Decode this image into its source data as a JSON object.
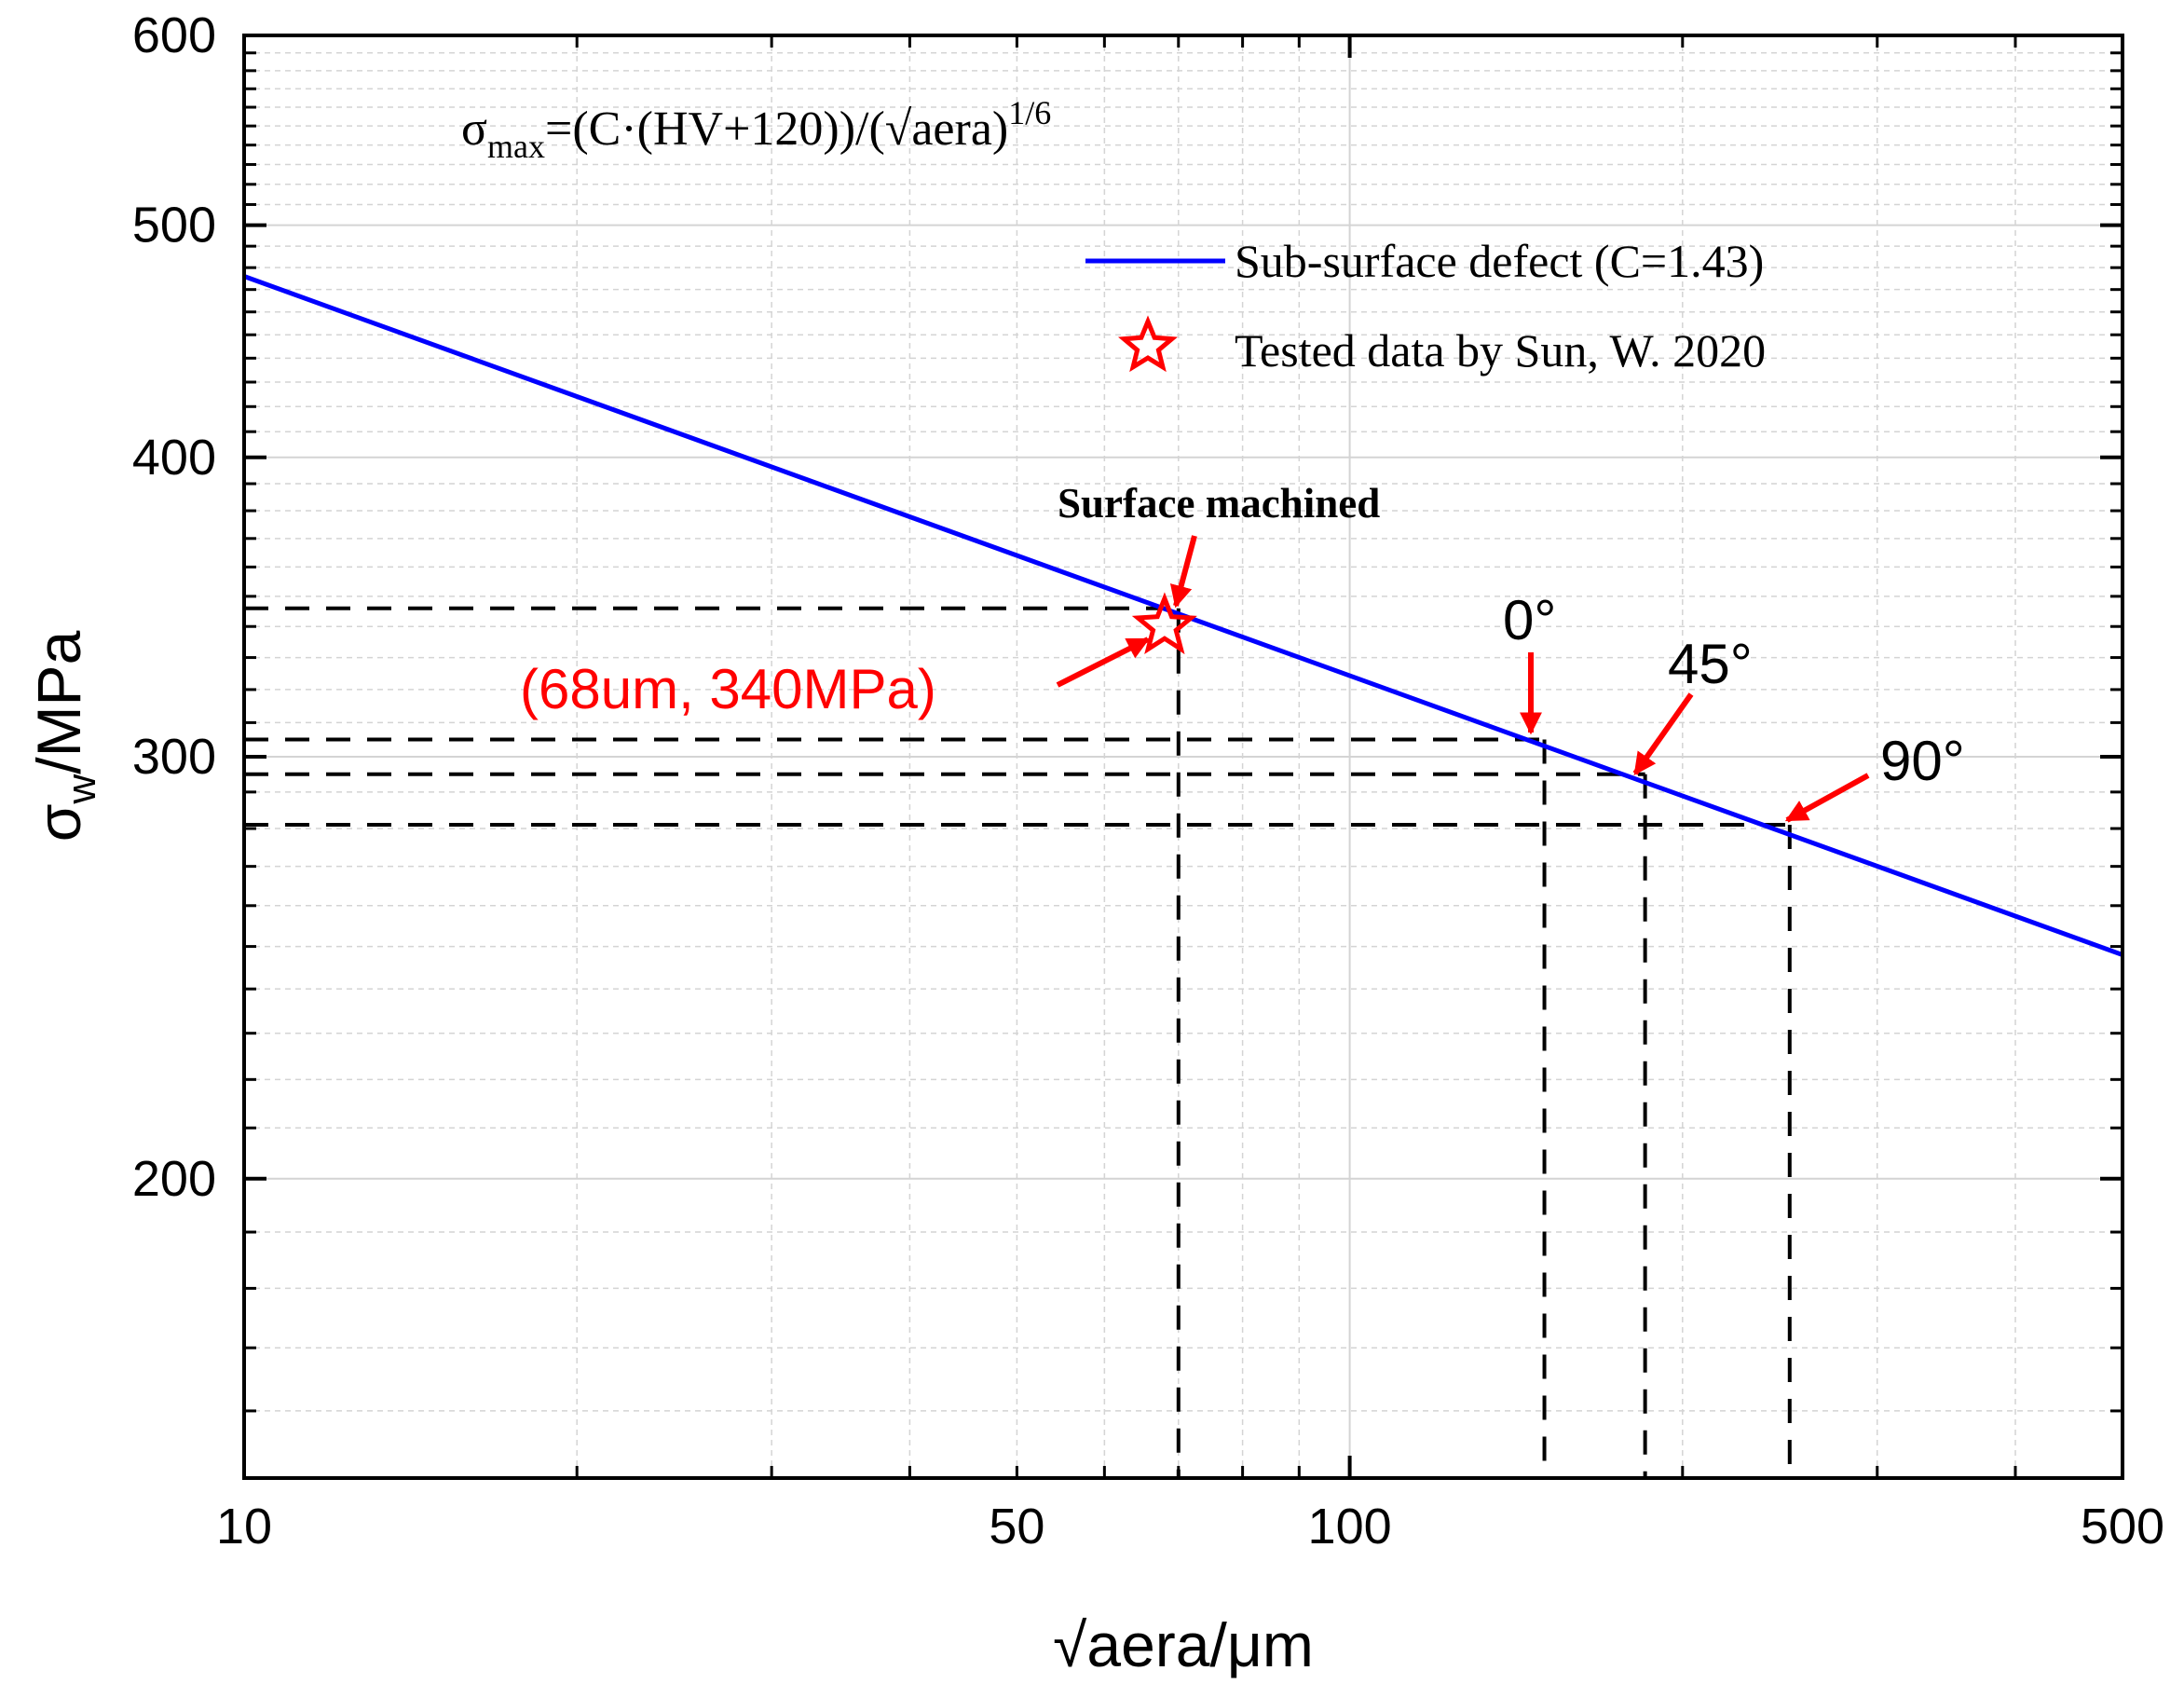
{
  "chart_data": {
    "type": "line",
    "x_scale": "log",
    "y_scale": "log",
    "xlim": [
      10,
      500
    ],
    "ylim": [
      150,
      600
    ],
    "xlabel": "√aera/μm",
    "ylabel_main": "σ",
    "ylabel_sub": "w",
    "ylabel_rest": "/MPa",
    "x_major_ticks": [
      10,
      100,
      500
    ],
    "x_minor_ticks": [
      20,
      30,
      40,
      50,
      60,
      70,
      80,
      90,
      200,
      300,
      400
    ],
    "x_tick_labels": [
      {
        "value": 10,
        "label": "10"
      },
      {
        "value": 50,
        "label": "50"
      },
      {
        "value": 100,
        "label": "100"
      },
      {
        "value": 500,
        "label": "500"
      }
    ],
    "y_major_ticks": [
      200,
      300,
      400,
      500,
      600
    ],
    "y_minor_ticks": [
      160,
      170,
      180,
      190,
      210,
      220,
      230,
      240,
      250,
      260,
      270,
      280,
      290,
      310,
      320,
      330,
      340,
      350,
      360,
      370,
      380,
      390,
      410,
      420,
      430,
      440,
      450,
      460,
      470,
      480,
      490,
      510,
      520,
      530,
      540,
      550,
      560,
      570,
      580,
      590
    ],
    "y_tick_labels": [
      {
        "value": 200,
        "label": "200"
      },
      {
        "value": 300,
        "label": "300"
      },
      {
        "value": 400,
        "label": "400"
      },
      {
        "value": 500,
        "label": "500"
      },
      {
        "value": 600,
        "label": "600"
      }
    ],
    "grid": true,
    "formula": {
      "prefix": "σ",
      "sub": "max",
      "mid": "=(C·(HV+120))/(√aera)",
      "sup": "1/6"
    },
    "series": [
      {
        "name": "Sub-surface defect (C=1.43)",
        "color": "#0000ff",
        "points": [
          [
            10,
            476
          ],
          [
            500,
            248
          ]
        ]
      },
      {
        "name": "Tested data by Sun, W. 2020",
        "color": "#ff0000",
        "marker": "star-open",
        "points": [
          [
            68,
            340
          ]
        ]
      }
    ],
    "reference_points": [
      {
        "name": "surface-machined",
        "x": 70,
        "y": 346,
        "label": "Surface machined",
        "label_style": "bold"
      },
      {
        "name": "0-deg",
        "x": 150,
        "y": 305,
        "label": "0°"
      },
      {
        "name": "45-deg",
        "x": 185,
        "y": 295,
        "label": "45°"
      },
      {
        "name": "90-deg",
        "x": 250,
        "y": 281,
        "label": "90°"
      }
    ],
    "point_label": "(68um, 340MPa)",
    "legend_location": "top-right",
    "colors": {
      "line": "#0000ff",
      "accent": "#ff0000",
      "dash": "#000000",
      "grid": "#d4d4d4"
    }
  }
}
